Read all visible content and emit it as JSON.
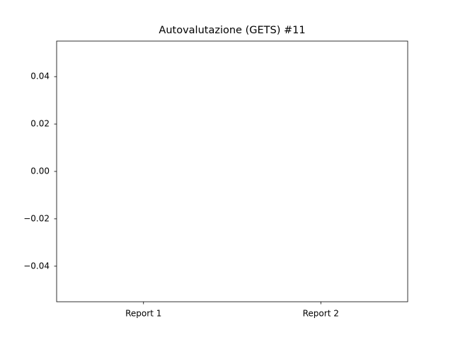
{
  "chart_data": {
    "type": "bar",
    "title": "Autovalutazione (GETS) #11",
    "categories": [
      "Report 1",
      "Report 2"
    ],
    "values": [
      0,
      0
    ],
    "color": "#1f77b4",
    "ylim": [
      -0.055,
      0.055
    ],
    "yticks": [
      {
        "value": -0.04,
        "label": "−0.04"
      },
      {
        "value": -0.02,
        "label": "−0.02"
      },
      {
        "value": 0,
        "label": "0.00"
      },
      0.02,
      0.04
    ],
    "grid": false
  }
}
